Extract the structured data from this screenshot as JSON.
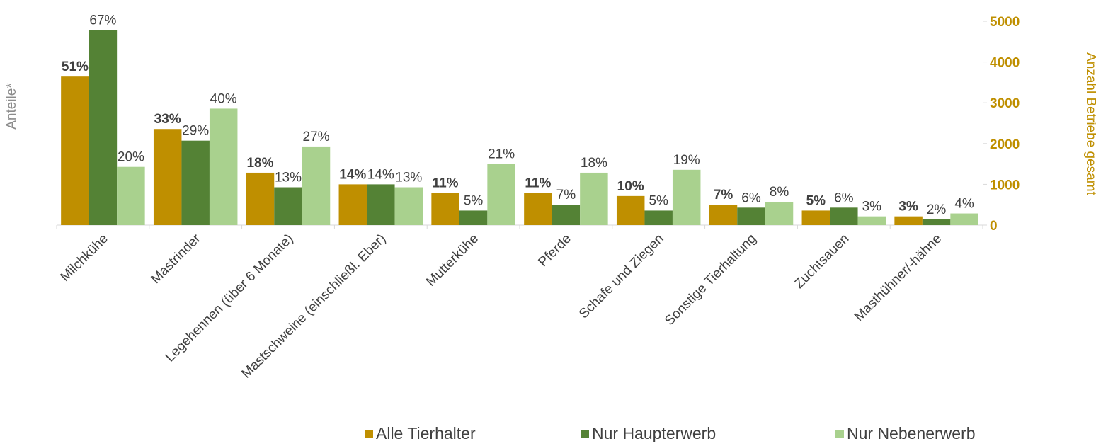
{
  "chart_data": {
    "type": "bar",
    "categories": [
      "Milchkühe",
      "Mastrinder",
      "Legehennen (über 6 Monate)",
      "Mastschweine (einschließl. Eber)",
      "Mutterkühe",
      "Pferde",
      "Schafe und Ziegen",
      "Sonstige Tierhaltung",
      "Zuchtsauen",
      "Masthühner/-hähne"
    ],
    "y_label": "Anteile*",
    "y2_label": "Anzahl Betriebe gesamt",
    "ylim": [
      0,
      70
    ],
    "y2lim": [
      0,
      5000
    ],
    "y2ticks": [
      0,
      1000,
      2000,
      3000,
      4000,
      5000
    ],
    "legend": "bottom",
    "series": [
      {
        "name": "Alle Tierhalter",
        "color": "#bf8f00",
        "values": [
          51,
          33,
          18,
          14,
          11,
          11,
          10,
          7,
          5,
          3
        ],
        "value_labels": [
          "51%",
          "33%",
          "18%",
          "14%",
          "11%",
          "11%",
          "10%",
          "7%",
          "5%",
          "3%"
        ]
      },
      {
        "name": "Nur Haupterwerb",
        "color": "#548235",
        "values": [
          67,
          29,
          13,
          14,
          5,
          7,
          5,
          6,
          6,
          2
        ],
        "value_labels": [
          "67%",
          "29%",
          "13%",
          "14%",
          "5%",
          "7%",
          "5%",
          "6%",
          "6%",
          "2%"
        ]
      },
      {
        "name": "Nur Nebenerwerb",
        "color": "#a9d18e",
        "values": [
          20,
          40,
          27,
          13,
          21,
          18,
          19,
          8,
          3,
          4
        ],
        "value_labels": [
          "20%",
          "40%",
          "27%",
          "13%",
          "21%",
          "18%",
          "19%",
          "8%",
          "3%",
          "4%"
        ]
      }
    ]
  }
}
